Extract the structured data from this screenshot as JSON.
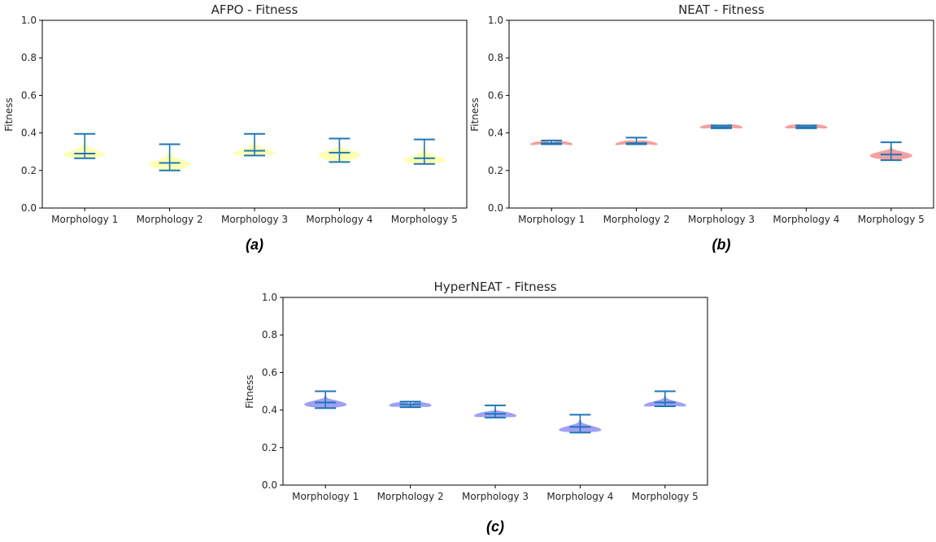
{
  "chart_data": [
    {
      "type": "violin",
      "panel": "a",
      "title": "AFPO - Fitness",
      "ylabel": "Fitness",
      "xlabel": "",
      "categories": [
        "Morphology 1",
        "Morphology 2",
        "Morphology 3",
        "Morphology 4",
        "Morphology 5"
      ],
      "ylim": [
        0.0,
        1.0
      ],
      "yticks": [
        "0.0",
        "0.2",
        "0.4",
        "0.6",
        "0.8",
        "1.0"
      ],
      "violin_color": "#ffff99",
      "line_color": "#1f77b4",
      "stats": [
        {
          "min": 0.265,
          "median": 0.29,
          "max": 0.395,
          "mode": 0.285
        },
        {
          "min": 0.2,
          "median": 0.24,
          "max": 0.34,
          "mode": 0.235
        },
        {
          "min": 0.28,
          "median": 0.305,
          "max": 0.395,
          "mode": 0.29
        },
        {
          "min": 0.245,
          "median": 0.295,
          "max": 0.37,
          "mode": 0.285
        },
        {
          "min": 0.235,
          "median": 0.265,
          "max": 0.365,
          "mode": 0.255
        }
      ],
      "caption": "(a)"
    },
    {
      "type": "violin",
      "panel": "b",
      "title": "NEAT - Fitness",
      "ylabel": "Fitness",
      "xlabel": "",
      "categories": [
        "Morphology 1",
        "Morphology 2",
        "Morphology 3",
        "Morphology 4",
        "Morphology 5"
      ],
      "ylim": [
        0.0,
        1.0
      ],
      "yticks": [
        "0.0",
        "0.2",
        "0.4",
        "0.6",
        "0.8",
        "1.0"
      ],
      "violin_color": "#f08080",
      "line_color": "#1f77b4",
      "stats": [
        {
          "min": 0.34,
          "median": 0.345,
          "max": 0.36,
          "mode": 0.34
        },
        {
          "min": 0.34,
          "median": 0.345,
          "max": 0.375,
          "mode": 0.34
        },
        {
          "min": 0.425,
          "median": 0.43,
          "max": 0.44,
          "mode": 0.43
        },
        {
          "min": 0.425,
          "median": 0.43,
          "max": 0.44,
          "mode": 0.43
        },
        {
          "min": 0.255,
          "median": 0.285,
          "max": 0.35,
          "mode": 0.28
        }
      ],
      "caption": "(b)"
    },
    {
      "type": "violin",
      "panel": "c",
      "title": "HyperNEAT - Fitness",
      "ylabel": "Fitness",
      "xlabel": "",
      "categories": [
        "Morphology 1",
        "Morphology 2",
        "Morphology 3",
        "Morphology 4",
        "Morphology 5"
      ],
      "ylim": [
        0.0,
        1.0
      ],
      "yticks": [
        "0.0",
        "0.2",
        "0.4",
        "0.6",
        "0.8",
        "1.0"
      ],
      "violin_color": "#8080f0",
      "line_color": "#1f77b4",
      "stats": [
        {
          "min": 0.41,
          "median": 0.44,
          "max": 0.5,
          "mode": 0.43
        },
        {
          "min": 0.415,
          "median": 0.43,
          "max": 0.445,
          "mode": 0.425
        },
        {
          "min": 0.36,
          "median": 0.38,
          "max": 0.425,
          "mode": 0.37
        },
        {
          "min": 0.28,
          "median": 0.31,
          "max": 0.375,
          "mode": 0.295
        },
        {
          "min": 0.42,
          "median": 0.44,
          "max": 0.5,
          "mode": 0.425
        }
      ],
      "caption": "(c)"
    }
  ]
}
